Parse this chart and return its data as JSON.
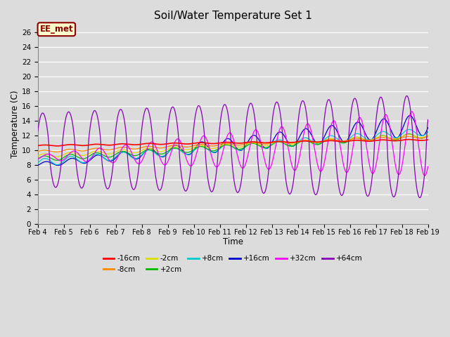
{
  "title": "Soil/Water Temperature Set 1",
  "xlabel": "Time",
  "ylabel": "Temperature (C)",
  "ylim": [
    0,
    27
  ],
  "yticks": [
    0,
    2,
    4,
    6,
    8,
    10,
    12,
    14,
    16,
    18,
    20,
    22,
    24,
    26
  ],
  "background_color": "#dcdcdc",
  "plot_bg_color": "#dcdcdc",
  "annotation_text": "EE_met",
  "annotation_bg": "#ffffcc",
  "annotation_border": "#8B0000",
  "annotation_text_color": "#8B0000",
  "series_colors": {
    "-16cm": "#ff0000",
    "-8cm": "#ff8800",
    "-2cm": "#dddd00",
    "+2cm": "#00bb00",
    "+8cm": "#00cccc",
    "+16cm": "#0000cc",
    "+32cm": "#ff00ff",
    "+64cm": "#8800bb"
  },
  "n_points_per_day": 48,
  "n_days": 15,
  "figsize": [
    6.4,
    4.8
  ],
  "dpi": 100
}
